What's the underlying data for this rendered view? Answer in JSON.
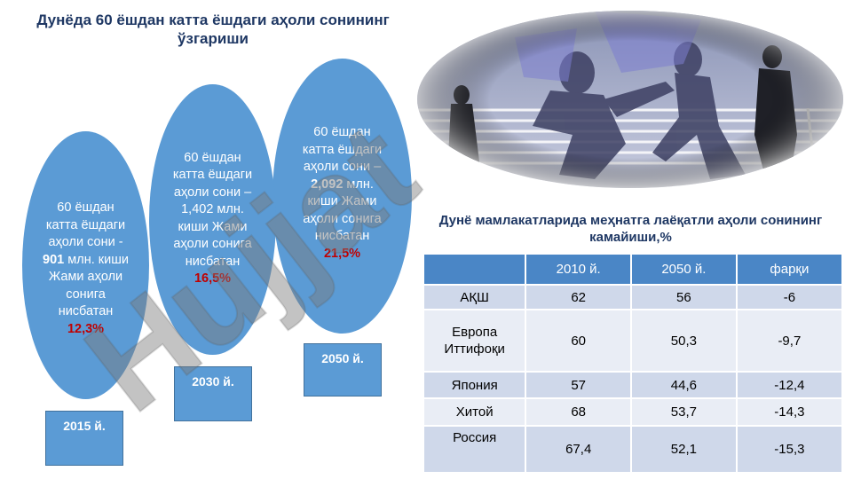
{
  "left_title": "Дунёда 60 ёшдан катта ёшдаги аҳоли сонининг ўзгариши",
  "ovals": [
    {
      "line1": "60 ёшдан катта ёшдаги аҳоли сони - ",
      "number": "901",
      "line2": " млн. киши Жами аҳоли сонига нисбатан ",
      "percent": "12,3%"
    },
    {
      "line1": "60 ёшдан катта ёшдаги аҳоли сони – 1,402 млн. киши Жами аҳоли сонига нисбатан ",
      "percent": "16,5%"
    },
    {
      "line1": "60 ёшдан катта ёшдаги аҳоли сони – ",
      "number": "2,092",
      "line2": " млн. киши Жами аҳоли сонига нисбатан ",
      "percent": "21,5%"
    }
  ],
  "years": [
    "2015 й.",
    "2030 й.",
    "2050 й."
  ],
  "right_title": "Дунё мамлакатларида меҳнатга лаёқатли аҳоли сонининг камайиши,%",
  "table": {
    "headers": [
      "",
      "2010 й.",
      "2050 й.",
      "фарқи"
    ],
    "rows": [
      [
        "АҚШ",
        "62",
        "56",
        "-6"
      ],
      [
        "Европа Иттифоқи",
        "60",
        "50,3",
        "-9,7"
      ],
      [
        "Япония",
        "57",
        "44,6",
        "-12,4"
      ],
      [
        "Хитой",
        "68",
        "53,7",
        "-14,3"
      ],
      [
        "Россия",
        "67,4",
        "52,1",
        "-15,3"
      ]
    ]
  },
  "watermark": "Hujjat",
  "colors": {
    "oval": "#5b9bd5",
    "header": "#4a86c6",
    "percent": "#c00000",
    "title": "#1f3864"
  }
}
